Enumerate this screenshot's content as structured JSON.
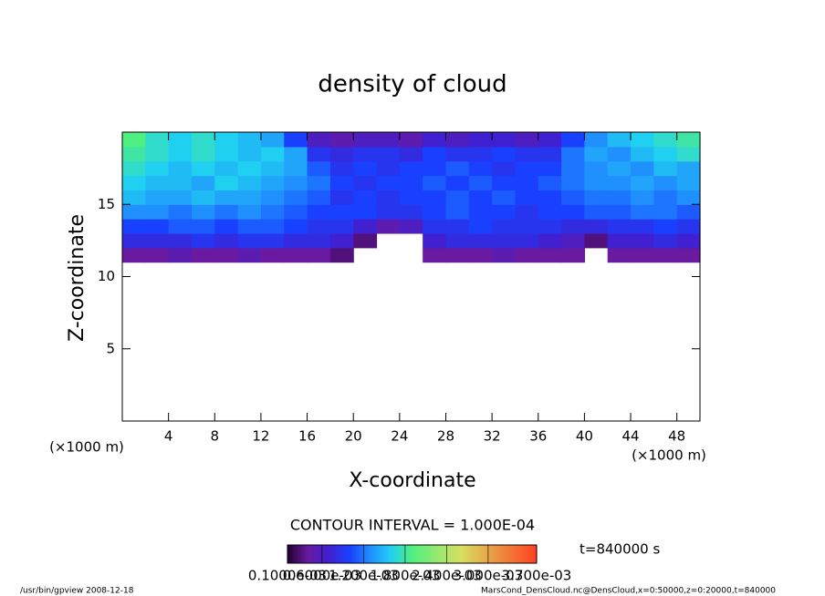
{
  "chart_data": {
    "type": "heatmap",
    "title": "density of cloud",
    "xlabel": "X-coordinate",
    "ylabel": "Z-coordinate",
    "x_unit": "(×1000 m)",
    "xlim": [
      0,
      50
    ],
    "ylim": [
      0,
      20
    ],
    "xticks": [
      4,
      8,
      12,
      16,
      20,
      24,
      28,
      32,
      36,
      40,
      44,
      48
    ],
    "yticks": [
      5,
      10,
      15
    ],
    "x": [
      1,
      3,
      5,
      7,
      9,
      11,
      13,
      15,
      17,
      19,
      21,
      23,
      25,
      27,
      29,
      31,
      33,
      35,
      37,
      39,
      41,
      43,
      45,
      47,
      49
    ],
    "y": [
      11.5,
      12.5,
      13.5,
      14.5,
      15.5,
      16.5,
      17.5,
      18.5,
      19.5
    ],
    "z": [
      [
        0.0004,
        0.0004,
        0.0005,
        0.0004,
        0.0004,
        0.0005,
        0.0004,
        0.0004,
        0.0004,
        0.0003,
        null,
        null,
        null,
        0.0004,
        0.0004,
        0.0004,
        0.0005,
        0.0004,
        0.0004,
        0.0004,
        null,
        0.0004,
        0.0004,
        0.0004,
        0.0004
      ],
      [
        0.0008,
        0.0008,
        0.0008,
        0.0009,
        0.0008,
        0.0009,
        0.0009,
        0.0008,
        0.0008,
        0.0007,
        0.0003,
        null,
        null,
        0.0007,
        0.0008,
        0.0008,
        0.0008,
        0.0008,
        0.0007,
        0.0006,
        0.0003,
        0.0007,
        0.0007,
        0.0008,
        0.0007
      ],
      [
        0.001,
        0.001,
        0.0011,
        0.0011,
        0.001,
        0.0011,
        0.0011,
        0.001,
        0.0009,
        0.0009,
        0.0007,
        0.0005,
        0.0006,
        0.0009,
        0.0009,
        0.001,
        0.0009,
        0.0009,
        0.0009,
        0.0008,
        0.0008,
        0.0009,
        0.0009,
        0.001,
        0.0009
      ],
      [
        0.0013,
        0.0013,
        0.0012,
        0.0013,
        0.0012,
        0.0013,
        0.0012,
        0.0011,
        0.001,
        0.001,
        0.001,
        0.0009,
        0.0009,
        0.001,
        0.0011,
        0.001,
        0.001,
        0.0009,
        0.001,
        0.001,
        0.0011,
        0.0011,
        0.0012,
        0.0012,
        0.0011
      ],
      [
        0.0015,
        0.0014,
        0.0014,
        0.0015,
        0.0014,
        0.0014,
        0.0013,
        0.0012,
        0.0011,
        0.0009,
        0.001,
        0.0009,
        0.001,
        0.001,
        0.0011,
        0.001,
        0.0011,
        0.001,
        0.001,
        0.0011,
        0.0012,
        0.0012,
        0.0013,
        0.0012,
        0.0013
      ],
      [
        0.0016,
        0.0015,
        0.0015,
        0.0014,
        0.0016,
        0.0015,
        0.0014,
        0.0013,
        0.0012,
        0.001,
        0.0009,
        0.001,
        0.001,
        0.0011,
        0.001,
        0.0011,
        0.001,
        0.001,
        0.0011,
        0.0012,
        0.0013,
        0.0013,
        0.0014,
        0.0013,
        0.0014
      ],
      [
        0.0017,
        0.0016,
        0.0015,
        0.0016,
        0.0015,
        0.0016,
        0.0015,
        0.0014,
        0.0011,
        0.0009,
        0.001,
        0.0009,
        0.001,
        0.001,
        0.0011,
        0.001,
        0.0009,
        0.001,
        0.001,
        0.0012,
        0.0013,
        0.0014,
        0.0013,
        0.0015,
        0.0014
      ],
      [
        0.0018,
        0.0017,
        0.0016,
        0.0017,
        0.0016,
        0.0015,
        0.0016,
        0.0014,
        0.0009,
        0.0008,
        0.0009,
        0.0009,
        0.0008,
        0.001,
        0.0009,
        0.0009,
        0.001,
        0.0009,
        0.0009,
        0.0012,
        0.0014,
        0.0013,
        0.0015,
        0.0016,
        0.0017
      ],
      [
        0.0019,
        0.0017,
        0.0016,
        0.0017,
        0.0016,
        0.0015,
        0.0014,
        0.001,
        0.0006,
        0.0005,
        0.0006,
        0.0006,
        0.0005,
        0.0007,
        0.0006,
        0.0007,
        0.0007,
        0.0006,
        0.0007,
        0.001,
        0.0013,
        0.0015,
        0.0016,
        0.0017,
        0.0018
      ]
    ],
    "colorscale": [
      {
        "value": 0.0001,
        "color": "#200030"
      },
      {
        "value": 0.0004,
        "color": "#6a1aa0"
      },
      {
        "value": 0.0007,
        "color": "#4020d0"
      },
      {
        "value": 0.001,
        "color": "#1a40ff"
      },
      {
        "value": 0.0013,
        "color": "#2090ff"
      },
      {
        "value": 0.0016,
        "color": "#20d0f0"
      },
      {
        "value": 0.0019,
        "color": "#50f080"
      },
      {
        "value": 0.0026,
        "color": "#d8e060"
      },
      {
        "value": 0.0037,
        "color": "#ff4020"
      }
    ],
    "colorbar": {
      "clim": [
        0.0001,
        0.0037
      ],
      "ticks": [
        {
          "value": 0.0001,
          "label": "0.1000e-03"
        },
        {
          "value": 0.0006,
          "label": "0.6000e-03"
        },
        {
          "value": 0.0012,
          "label": "1.200e-03"
        },
        {
          "value": 0.0018,
          "label": "1.800e-03"
        },
        {
          "value": 0.0024,
          "label": "2.400e-03"
        },
        {
          "value": 0.003,
          "label": "3.000e-03"
        },
        {
          "value": 0.0037,
          "label": "3.700e-03"
        }
      ]
    },
    "contour_interval": "CONTOUR INTERVAL = 1.000E-04",
    "time_label": "t=840000 s",
    "footer_left": "/usr/bin/gpview   2008-12-18",
    "footer_right": "MarsCond_DensCloud.nc@DensCloud,x=0:50000,z=0:20000,t=840000"
  }
}
